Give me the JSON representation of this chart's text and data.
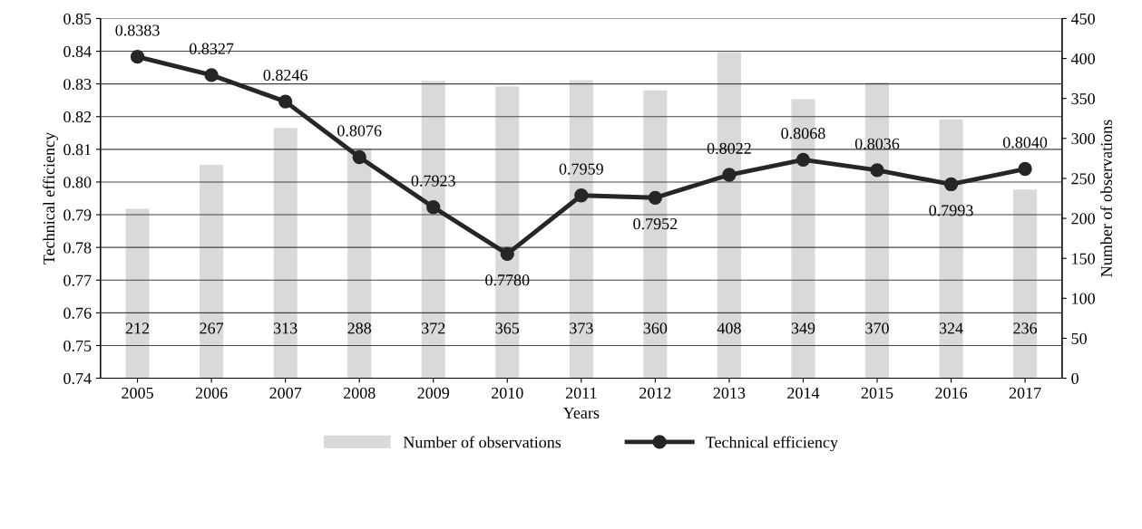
{
  "chart_data": {
    "type": "bar",
    "categories": [
      "2005",
      "2006",
      "2007",
      "2008",
      "2009",
      "2010",
      "2011",
      "2012",
      "2013",
      "2014",
      "2015",
      "2016",
      "2017"
    ],
    "xlabel": "Years",
    "ylabel": "Technical efficiency",
    "y2label": "Number of observations",
    "series": [
      {
        "name": "Number of observations",
        "axis": "y2",
        "color": "#d9d9d9",
        "values": [
          212,
          267,
          313,
          288,
          372,
          365,
          373,
          360,
          408,
          349,
          370,
          324,
          236
        ]
      },
      {
        "name": "Technical efficiency",
        "type": "line",
        "axis": "y",
        "color": "#262626",
        "marker": "circle",
        "line_style": "solid",
        "values": [
          0.8383,
          0.8327,
          0.8246,
          0.8076,
          0.7923,
          0.778,
          0.7959,
          0.7952,
          0.8022,
          0.8068,
          0.8036,
          0.7993,
          0.804
        ],
        "value_labels": [
          "0.8383",
          "0.8327",
          "0.8246",
          "0.8076",
          "0.7923",
          "0.7780",
          "0.7959",
          "0.7952",
          "0.8022",
          "0.8068",
          "0.8036",
          "0.7993",
          "0.8040"
        ]
      }
    ],
    "ylim": [
      0.74,
      0.85
    ],
    "yticks": [
      {
        "value": 0.74,
        "label": "0.74"
      },
      {
        "value": 0.75,
        "label": "0.75"
      },
      {
        "value": 0.76,
        "label": "0.76"
      },
      {
        "value": 0.77,
        "label": "0.77"
      },
      {
        "value": 0.78,
        "label": "0.78"
      },
      {
        "value": 0.79,
        "label": "0.79"
      },
      {
        "value": 0.8,
        "label": "0.80"
      },
      {
        "value": 0.81,
        "label": "0.81"
      },
      {
        "value": 0.82,
        "label": "0.82"
      },
      {
        "value": 0.83,
        "label": "0.83"
      },
      {
        "value": 0.84,
        "label": "0.84"
      },
      {
        "value": 0.85,
        "label": "0.85"
      }
    ],
    "y2lim": [
      0,
      450
    ],
    "y2ticks": [
      0,
      50,
      100,
      150,
      200,
      250,
      300,
      350,
      400,
      450
    ],
    "grid": "y",
    "legend": "bottom",
    "data_labels": true
  }
}
